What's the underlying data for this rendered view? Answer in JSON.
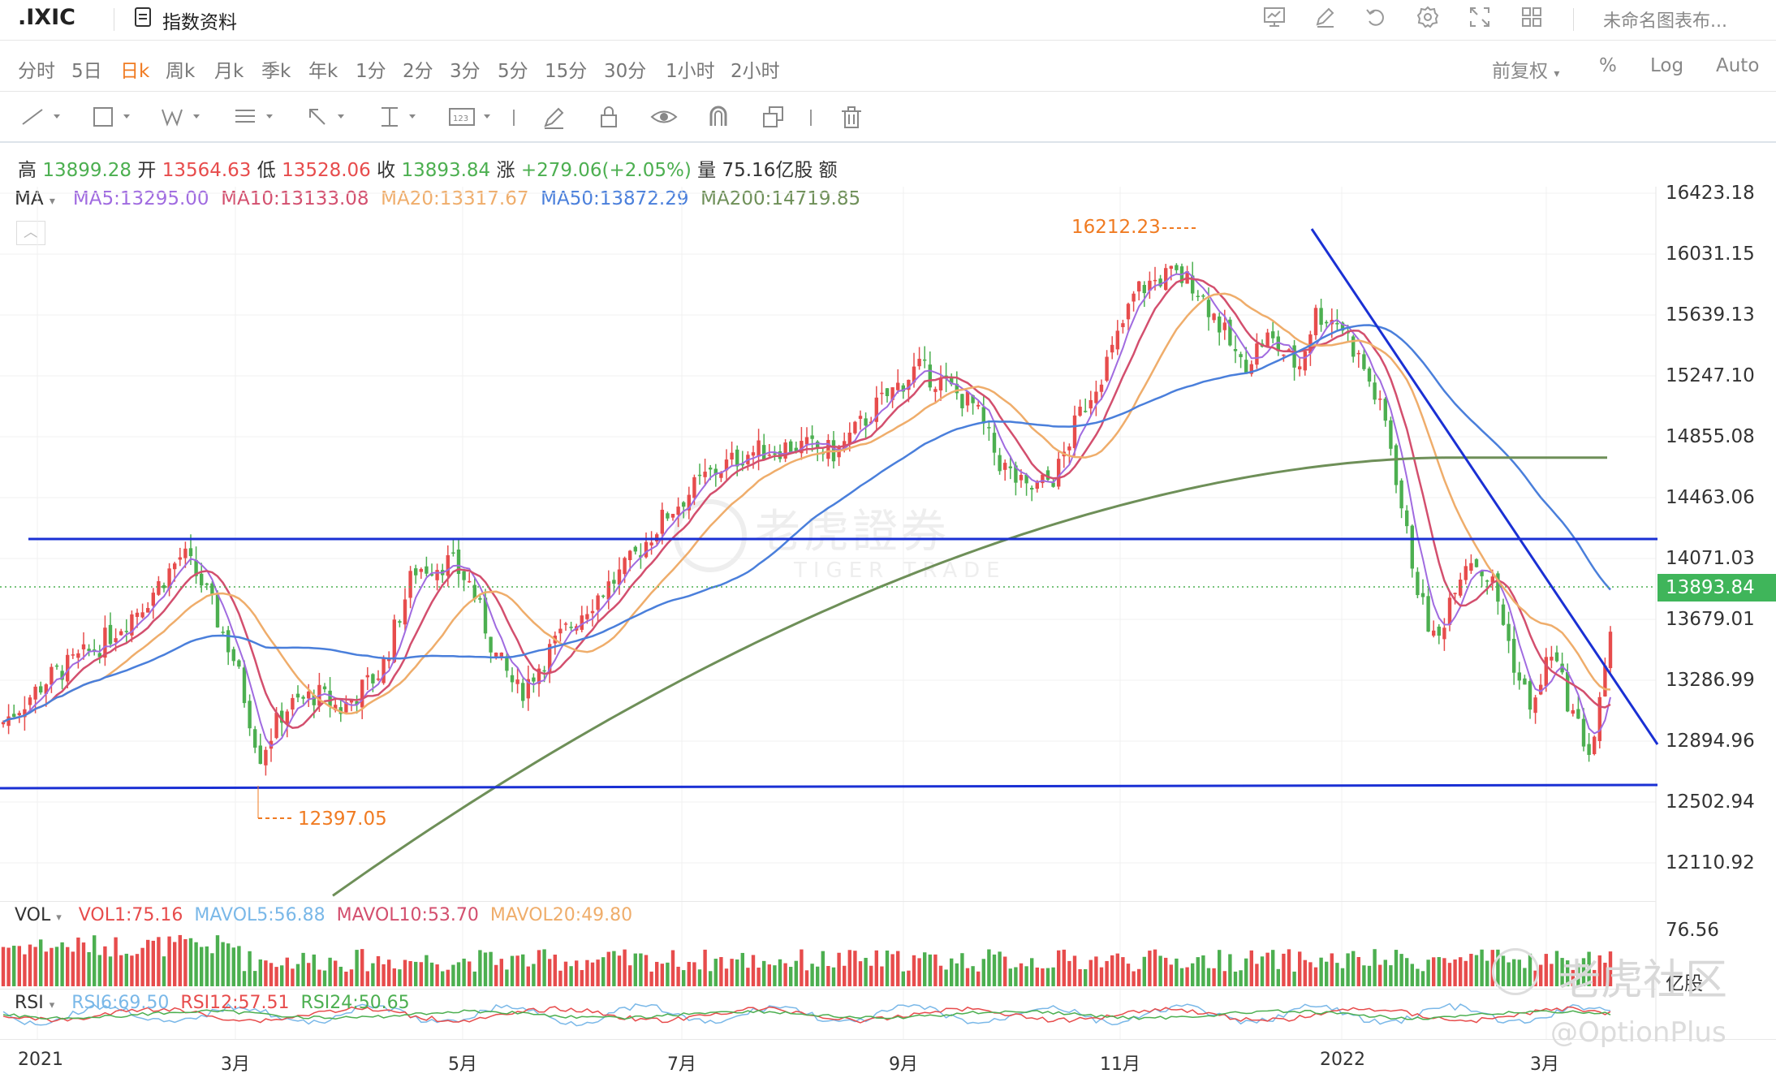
{
  "topbar": {
    "ticker": ".IXIC",
    "info_label": "指数资料",
    "chart_name": "未命名图表布...",
    "icons": [
      "chart-icon",
      "pencil-icon",
      "undo-icon",
      "gear-icon",
      "fullscreen-icon",
      "layout-grid-icon"
    ]
  },
  "periods": [
    "分时",
    "5日",
    "日k",
    "周k",
    "月k",
    "季k",
    "年k",
    "1分",
    "2分",
    "3分",
    "5分",
    "15分",
    "30分",
    "1小时",
    "2小时"
  ],
  "active_period": "日k",
  "period_right": {
    "adjust": "前复权",
    "percent": "%",
    "log": "Log",
    "auto": "Auto"
  },
  "ohlc": {
    "high_label": "高",
    "high": "13899.28",
    "open_label": "开",
    "open": "13564.63",
    "low_label": "低",
    "low": "13528.06",
    "close_label": "收",
    "close": "13893.84",
    "change_label": "涨",
    "change": "+279.06(+2.05%)",
    "volume_label": "量",
    "volume": "75.16亿股",
    "amount_label": "额"
  },
  "ma": {
    "label": "MA",
    "ma5": "MA5:13295.00",
    "ma10": "MA10:13133.08",
    "ma20": "MA20:13317.67",
    "ma50": "MA50:13872.29",
    "ma200": "MA200:14719.85"
  },
  "colors": {
    "up": "#e74c4c",
    "down": "#4caf50",
    "ma5": "#a06be0",
    "ma10": "#d34f6e",
    "ma20": "#efad6b",
    "ma50": "#4a7fdb",
    "ma200": "#6e8f58",
    "trendline": "#1a30d4",
    "last_price": "#3fb55a",
    "annotation": "#f07b22"
  },
  "price_axis": [
    "16423.18",
    "16031.15",
    "15639.13",
    "15247.10",
    "14855.08",
    "14463.06",
    "14071.03",
    "13679.01",
    "13286.99",
    "12894.96",
    "12502.94",
    "12110.92"
  ],
  "last_price": "13893.84",
  "annotations": {
    "high": "16212.23",
    "low": "12397.05"
  },
  "volume_panel": {
    "label": "VOL",
    "vol": "VOL1:75.16",
    "mavol5": "MAVOL5:56.88",
    "mavol10": "MAVOL10:53.70",
    "mavol20": "MAVOL20:49.80",
    "axis_top": "76.56",
    "axis_unit": "亿股"
  },
  "rsi_panel": {
    "label": "RSI",
    "rsi6": "RSI6:69.50",
    "rsi12": "RSI12:57.51",
    "rsi24": "RSI24:50.65"
  },
  "x_axis": [
    "2021",
    "3月",
    "5月",
    "7月",
    "9月",
    "11月",
    "2022",
    "3月"
  ],
  "watermarks": {
    "center_cn": "老虎證券",
    "center_en": "TIGER TRADE",
    "corner_cn": "老虎社区",
    "corner_handle": "@OptionPlus"
  }
}
